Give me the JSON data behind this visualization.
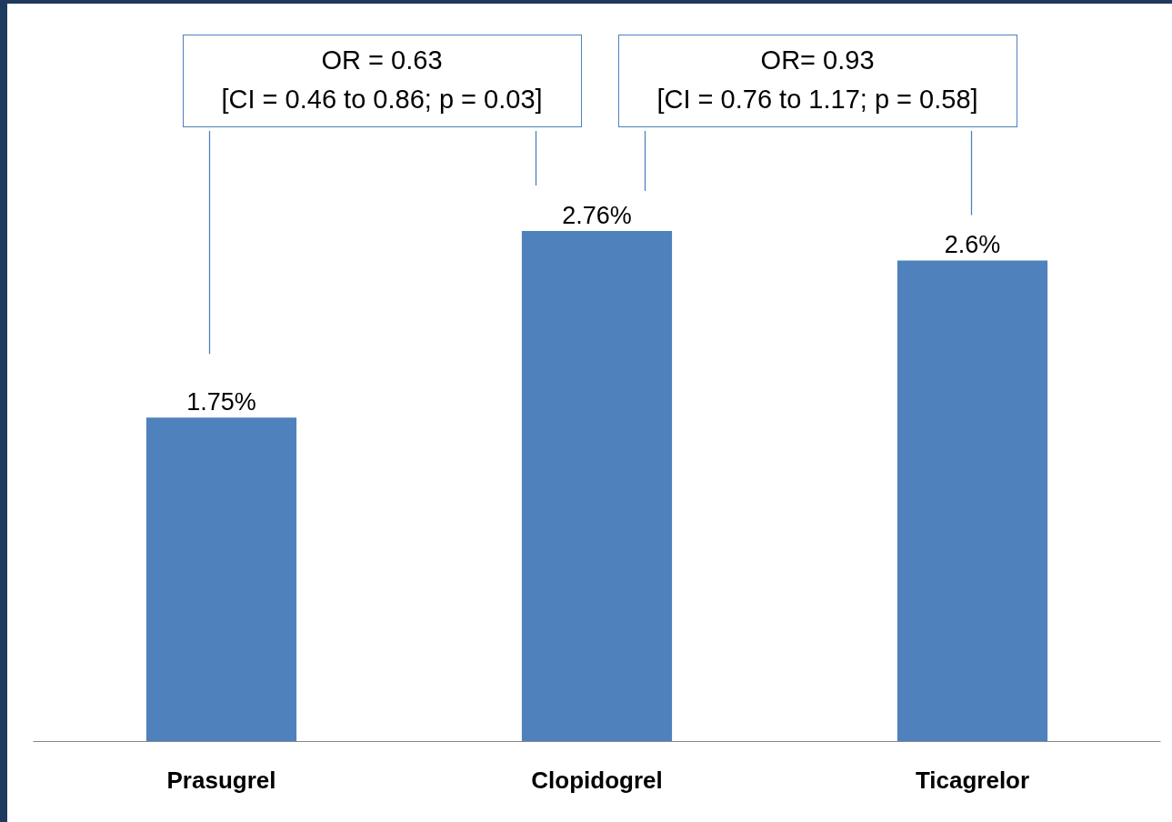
{
  "chart_data": {
    "type": "bar",
    "categories": [
      "Prasugrel",
      "Clopidogrel",
      "Ticagrelor"
    ],
    "values": [
      1.75,
      2.76,
      2.6
    ],
    "value_labels": [
      "1.75%",
      "2.76%",
      "2.6%"
    ],
    "color": "#4f81bd",
    "annotations": [
      "OR = 0.63\n[CI = 0.46 to 0.86; p = 0.03]",
      "OR= 0.93\n[CI = 0.76 to 1.17; p = 0.58]"
    ]
  }
}
